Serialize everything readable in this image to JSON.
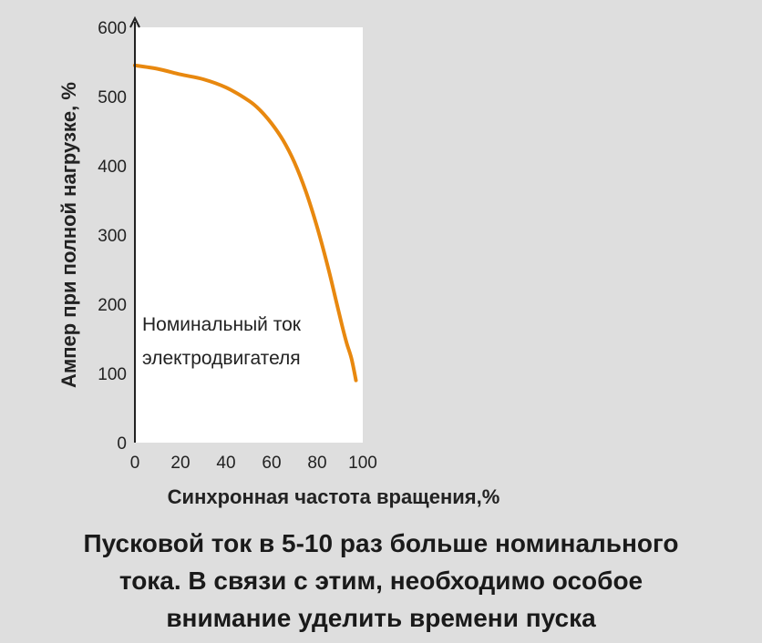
{
  "chart_data": {
    "type": "line",
    "title": "",
    "xlabel": "Синхронная частота вращения,%",
    "ylabel": "Ампер при полной нагрузке, %",
    "xlim": [
      0,
      100
    ],
    "ylim": [
      0,
      600
    ],
    "x_ticks": [
      0,
      20,
      40,
      60,
      80,
      100
    ],
    "y_ticks": [
      0,
      100,
      200,
      300,
      400,
      500,
      600
    ],
    "grid": false,
    "series": [
      {
        "x": [
          0,
          10,
          20,
          30,
          40,
          50,
          55,
          60,
          65,
          70,
          75,
          80,
          85,
          88,
          91,
          93,
          95,
          97
        ],
        "y": [
          545,
          540,
          532,
          525,
          513,
          494,
          480,
          461,
          437,
          405,
          363,
          311,
          250,
          209,
          168,
          143,
          122,
          90
        ],
        "color": "#e8880f"
      }
    ],
    "annotation": [
      "Номинальный ток",
      "электродвигателя"
    ]
  },
  "caption": [
    "Пусковой ток в 5-10 раз больше номинального",
    "тока. В связи с этим, необходимо особое",
    "внимание уделить времени пуска"
  ]
}
